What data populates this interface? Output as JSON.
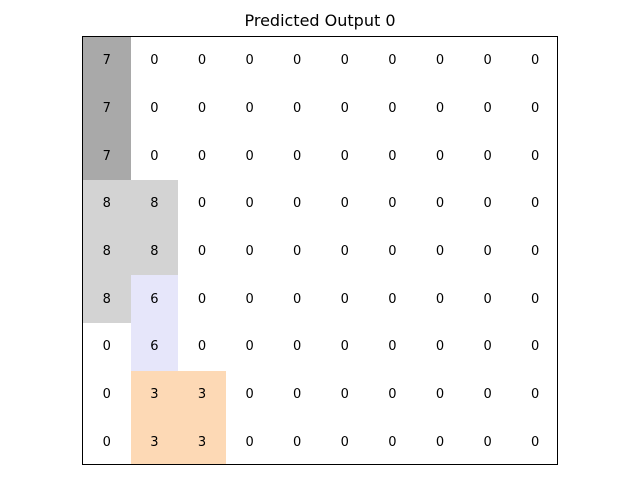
{
  "title": "Predicted Output 0",
  "grid": {
    "rows": [
      [
        7,
        0,
        0,
        0,
        0,
        0,
        0,
        0,
        0,
        0
      ],
      [
        7,
        0,
        0,
        0,
        0,
        0,
        0,
        0,
        0,
        0
      ],
      [
        7,
        0,
        0,
        0,
        0,
        0,
        0,
        0,
        0,
        0
      ],
      [
        8,
        8,
        0,
        0,
        0,
        0,
        0,
        0,
        0,
        0
      ],
      [
        8,
        8,
        0,
        0,
        0,
        0,
        0,
        0,
        0,
        0
      ],
      [
        8,
        6,
        0,
        0,
        0,
        0,
        0,
        0,
        0,
        0
      ],
      [
        0,
        6,
        0,
        0,
        0,
        0,
        0,
        0,
        0,
        0
      ],
      [
        0,
        3,
        3,
        0,
        0,
        0,
        0,
        0,
        0,
        0
      ],
      [
        0,
        3,
        3,
        0,
        0,
        0,
        0,
        0,
        0,
        0
      ]
    ],
    "palette": {
      "0": "#ffffff",
      "3": "#fdd9b5",
      "6": "#e6e6fa",
      "7": "#a9a9a9",
      "8": "#d3d3d3"
    }
  }
}
